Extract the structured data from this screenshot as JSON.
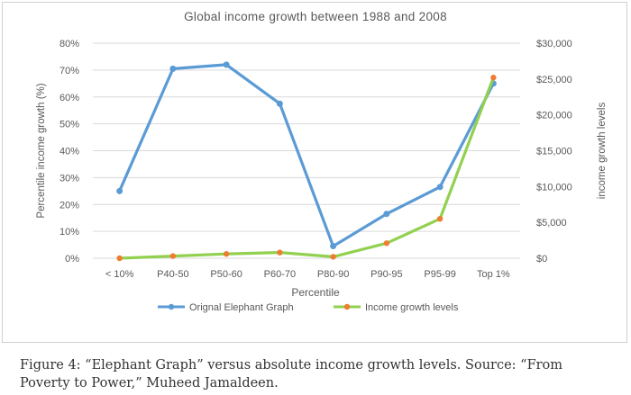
{
  "colors": {
    "series_blue": "#5b9bd5",
    "series_green": "#92d050",
    "marker_orange": "#ed7d31",
    "axis_text": "#595959",
    "grid": "#d9d9d9"
  },
  "chart_data": {
    "type": "line",
    "title": "Global income growth between 1988 and 2008",
    "xlabel": "Percentile",
    "ylabel": "Percentile income growth (%)",
    "y2label": "income growth levels",
    "categories": [
      "< 10%",
      "P40-50",
      "P50-60",
      "P60-70",
      "P80-90",
      "P90-95",
      "P95-99",
      "Top 1%"
    ],
    "ylim": [
      0,
      80
    ],
    "yticks": [
      0,
      10,
      20,
      30,
      40,
      50,
      60,
      70,
      80
    ],
    "ytick_labels": [
      "0%",
      "10%",
      "20%",
      "30%",
      "40%",
      "50%",
      "60%",
      "70%",
      "80%"
    ],
    "y2lim": [
      0,
      30000
    ],
    "y2ticks": [
      0,
      5000,
      10000,
      15000,
      20000,
      25000,
      30000
    ],
    "y2tick_labels": [
      "$0",
      "$5,000",
      "$10,000",
      "$15,000",
      "$20,000",
      "$25,000",
      "$30,000"
    ],
    "grid": true,
    "legend_position": "bottom",
    "series": [
      {
        "name": "Orignal Elephant Graph",
        "axis": "left",
        "values": [
          25,
          70.5,
          72,
          57.5,
          4.5,
          16.5,
          26.5,
          65
        ]
      },
      {
        "name": "Income growth levels",
        "axis": "right",
        "values": [
          0,
          300,
          600,
          800,
          200,
          2100,
          5500,
          25200
        ]
      }
    ]
  },
  "caption": {
    "line1": "Figure 4: “Elephant Graph” versus absolute income growth levels. Source: “From",
    "line2": "Poverty to Power,” Muheed Jamaldeen."
  }
}
